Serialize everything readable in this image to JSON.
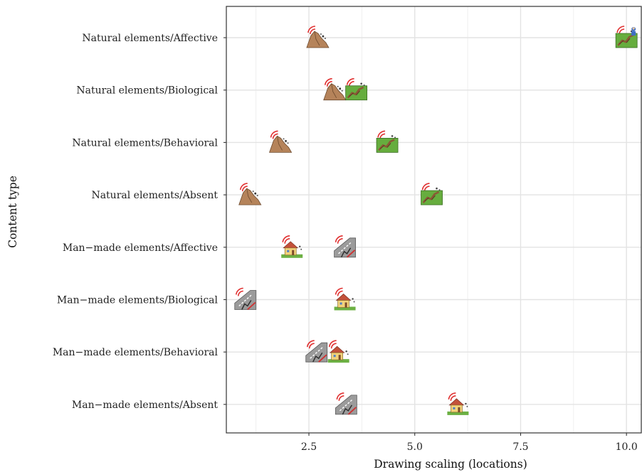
{
  "chart_data": {
    "type": "scatter",
    "xlabel": "Drawing scaling (locations)",
    "ylabel": "Content type",
    "xlim": [
      0.55,
      10.35
    ],
    "xticks": [
      2.5,
      5.0,
      7.5,
      10.0
    ],
    "x_tick_labels": [
      "2.5",
      "5.0",
      "7.5",
      "10.0"
    ],
    "grid": true,
    "categories": [
      "Natural elements/Affective",
      "Natural elements/Biological",
      "Natural elements/Behavioral",
      "Natural elements/Absent",
      "Man−made elements/Affective",
      "Man−made elements/Biological",
      "Man−made elements/Behavioral",
      "Man−made elements/Absent"
    ],
    "points": [
      {
        "category": "Natural elements/Affective",
        "x": 2.7,
        "icon": "rock-landslide-icon"
      },
      {
        "category": "Natural elements/Affective",
        "x": 10.0,
        "icon": "grass-landslide-person-icon"
      },
      {
        "category": "Natural elements/Biological",
        "x": 3.1,
        "icon": "rock-landslide-icon"
      },
      {
        "category": "Natural elements/Biological",
        "x": 3.62,
        "icon": "grass-landslide-icon"
      },
      {
        "category": "Natural elements/Behavioral",
        "x": 1.82,
        "icon": "rock-landslide-icon"
      },
      {
        "category": "Natural elements/Behavioral",
        "x": 4.35,
        "icon": "grass-landslide-icon"
      },
      {
        "category": "Natural elements/Absent",
        "x": 1.1,
        "icon": "rock-landslide-icon"
      },
      {
        "category": "Natural elements/Absent",
        "x": 5.4,
        "icon": "grass-landslide-icon"
      },
      {
        "category": "Man−made elements/Affective",
        "x": 2.1,
        "icon": "house-icon"
      },
      {
        "category": "Man−made elements/Affective",
        "x": 3.35,
        "icon": "road-crack-icon"
      },
      {
        "category": "Man−made elements/Biological",
        "x": 1.0,
        "icon": "road-crack-icon"
      },
      {
        "category": "Man−made elements/Biological",
        "x": 3.35,
        "icon": "house-icon"
      },
      {
        "category": "Man−made elements/Behavioral",
        "x": 2.68,
        "icon": "road-crack-icon"
      },
      {
        "category": "Man−made elements/Behavioral",
        "x": 3.2,
        "icon": "house-icon"
      },
      {
        "category": "Man−made elements/Absent",
        "x": 3.38,
        "icon": "road-crack-icon"
      },
      {
        "category": "Man−made elements/Absent",
        "x": 6.02,
        "icon": "house-icon"
      }
    ]
  }
}
